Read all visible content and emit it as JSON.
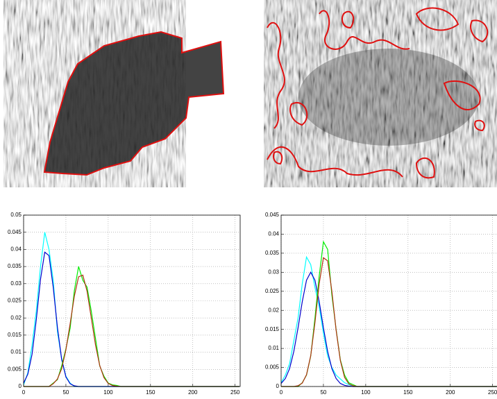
{
  "chart_data": [
    {
      "type": "line",
      "x": [
        0,
        5,
        10,
        15,
        20,
        25,
        30,
        35,
        40,
        45,
        50,
        55,
        60,
        65,
        70,
        75,
        80,
        85,
        90,
        95,
        100,
        105,
        110,
        115,
        120,
        125,
        130,
        255
      ],
      "series": [
        {
          "color": "#00ffff",
          "values": [
            0.0005,
            0.004,
            0.012,
            0.022,
            0.035,
            0.045,
            0.04,
            0.031,
            0.016,
            0.008,
            0.003,
            0.001,
            0,
            0,
            0,
            0,
            0,
            0,
            0,
            0,
            0,
            0,
            0,
            0,
            0,
            0,
            0,
            0
          ]
        },
        {
          "color": "#0000cc",
          "values": [
            0.001,
            0.0036,
            0.0094,
            0.0195,
            0.0313,
            0.0392,
            0.0382,
            0.029,
            0.0172,
            0.0079,
            0.0028,
            0.0008,
            0.0002,
            0,
            0,
            0,
            0,
            0,
            0,
            0,
            0,
            0,
            0,
            0,
            0,
            0,
            0,
            0
          ]
        },
        {
          "color": "#00ee00",
          "values": [
            0,
            0,
            0,
            0,
            0,
            0,
            0,
            0.001,
            0.002,
            0.006,
            0.011,
            0.017,
            0.028,
            0.035,
            0.031,
            0.029,
            0.022,
            0.014,
            0.006,
            0.003,
            0.001,
            0.0005,
            0.0003,
            0,
            0,
            0,
            0,
            0
          ]
        },
        {
          "color": "#b03010",
          "values": [
            0,
            0,
            0,
            0,
            0,
            0,
            0,
            0.0008,
            0.0022,
            0.0052,
            0.0107,
            0.0183,
            0.0264,
            0.032,
            0.0325,
            0.0278,
            0.02,
            0.0121,
            0.0061,
            0.0026,
            0.0009,
            0.0003,
            0.0001,
            0,
            0,
            0,
            0,
            0
          ]
        }
      ],
      "xlim": [
        0,
        256
      ],
      "xticks": [
        0,
        50,
        100,
        150,
        200,
        250
      ],
      "ylim": [
        0,
        0.05
      ],
      "yticks": [
        0,
        0.005,
        0.01,
        0.015,
        0.02,
        0.025,
        0.03,
        0.035,
        0.04,
        0.045,
        0.05
      ],
      "grid": true
    },
    {
      "type": "line",
      "x": [
        0,
        5,
        10,
        15,
        20,
        25,
        30,
        35,
        40,
        45,
        50,
        55,
        60,
        65,
        70,
        75,
        80,
        85,
        90,
        95,
        100,
        105,
        110,
        115,
        120,
        125,
        130,
        255
      ],
      "series": [
        {
          "color": "#00ffff",
          "values": [
            0.001,
            0.003,
            0.006,
            0.012,
            0.018,
            0.027,
            0.034,
            0.032,
            0.026,
            0.021,
            0.014,
            0.008,
            0.005,
            0.003,
            0.002,
            0.001,
            0.0005,
            0,
            0,
            0,
            0,
            0,
            0,
            0,
            0,
            0,
            0,
            0
          ]
        },
        {
          "color": "#0000cc",
          "values": [
            0.0008,
            0.0021,
            0.0047,
            0.0092,
            0.0154,
            0.0223,
            0.0279,
            0.03,
            0.0279,
            0.0223,
            0.0154,
            0.0092,
            0.0047,
            0.0021,
            0.0008,
            0.0003,
            0.0001,
            0,
            0,
            0,
            0,
            0,
            0,
            0,
            0,
            0,
            0,
            0
          ]
        },
        {
          "color": "#00ee00",
          "values": [
            0,
            0,
            0,
            0,
            0,
            0.001,
            0.003,
            0.008,
            0.018,
            0.029,
            0.038,
            0.036,
            0.024,
            0.015,
            0.007,
            0.003,
            0.001,
            0.0005,
            0,
            0,
            0,
            0,
            0,
            0,
            0,
            0,
            0,
            0
          ]
        },
        {
          "color": "#b03010",
          "values": [
            0,
            0,
            0,
            0,
            0.0002,
            0.0009,
            0.0031,
            0.0081,
            0.0168,
            0.027,
            0.0338,
            0.033,
            0.025,
            0.0148,
            0.0068,
            0.0024,
            0.0007,
            0.0002,
            0,
            0,
            0,
            0,
            0,
            0,
            0,
            0,
            0,
            0
          ]
        }
      ],
      "xlim": [
        0,
        256
      ],
      "xticks": [
        0,
        50,
        100,
        150,
        200,
        250
      ],
      "ylim": [
        0,
        0.045
      ],
      "yticks": [
        0,
        0.005,
        0.01,
        0.015,
        0.02,
        0.025,
        0.03,
        0.035,
        0.04,
        0.045
      ],
      "grid": true
    }
  ]
}
